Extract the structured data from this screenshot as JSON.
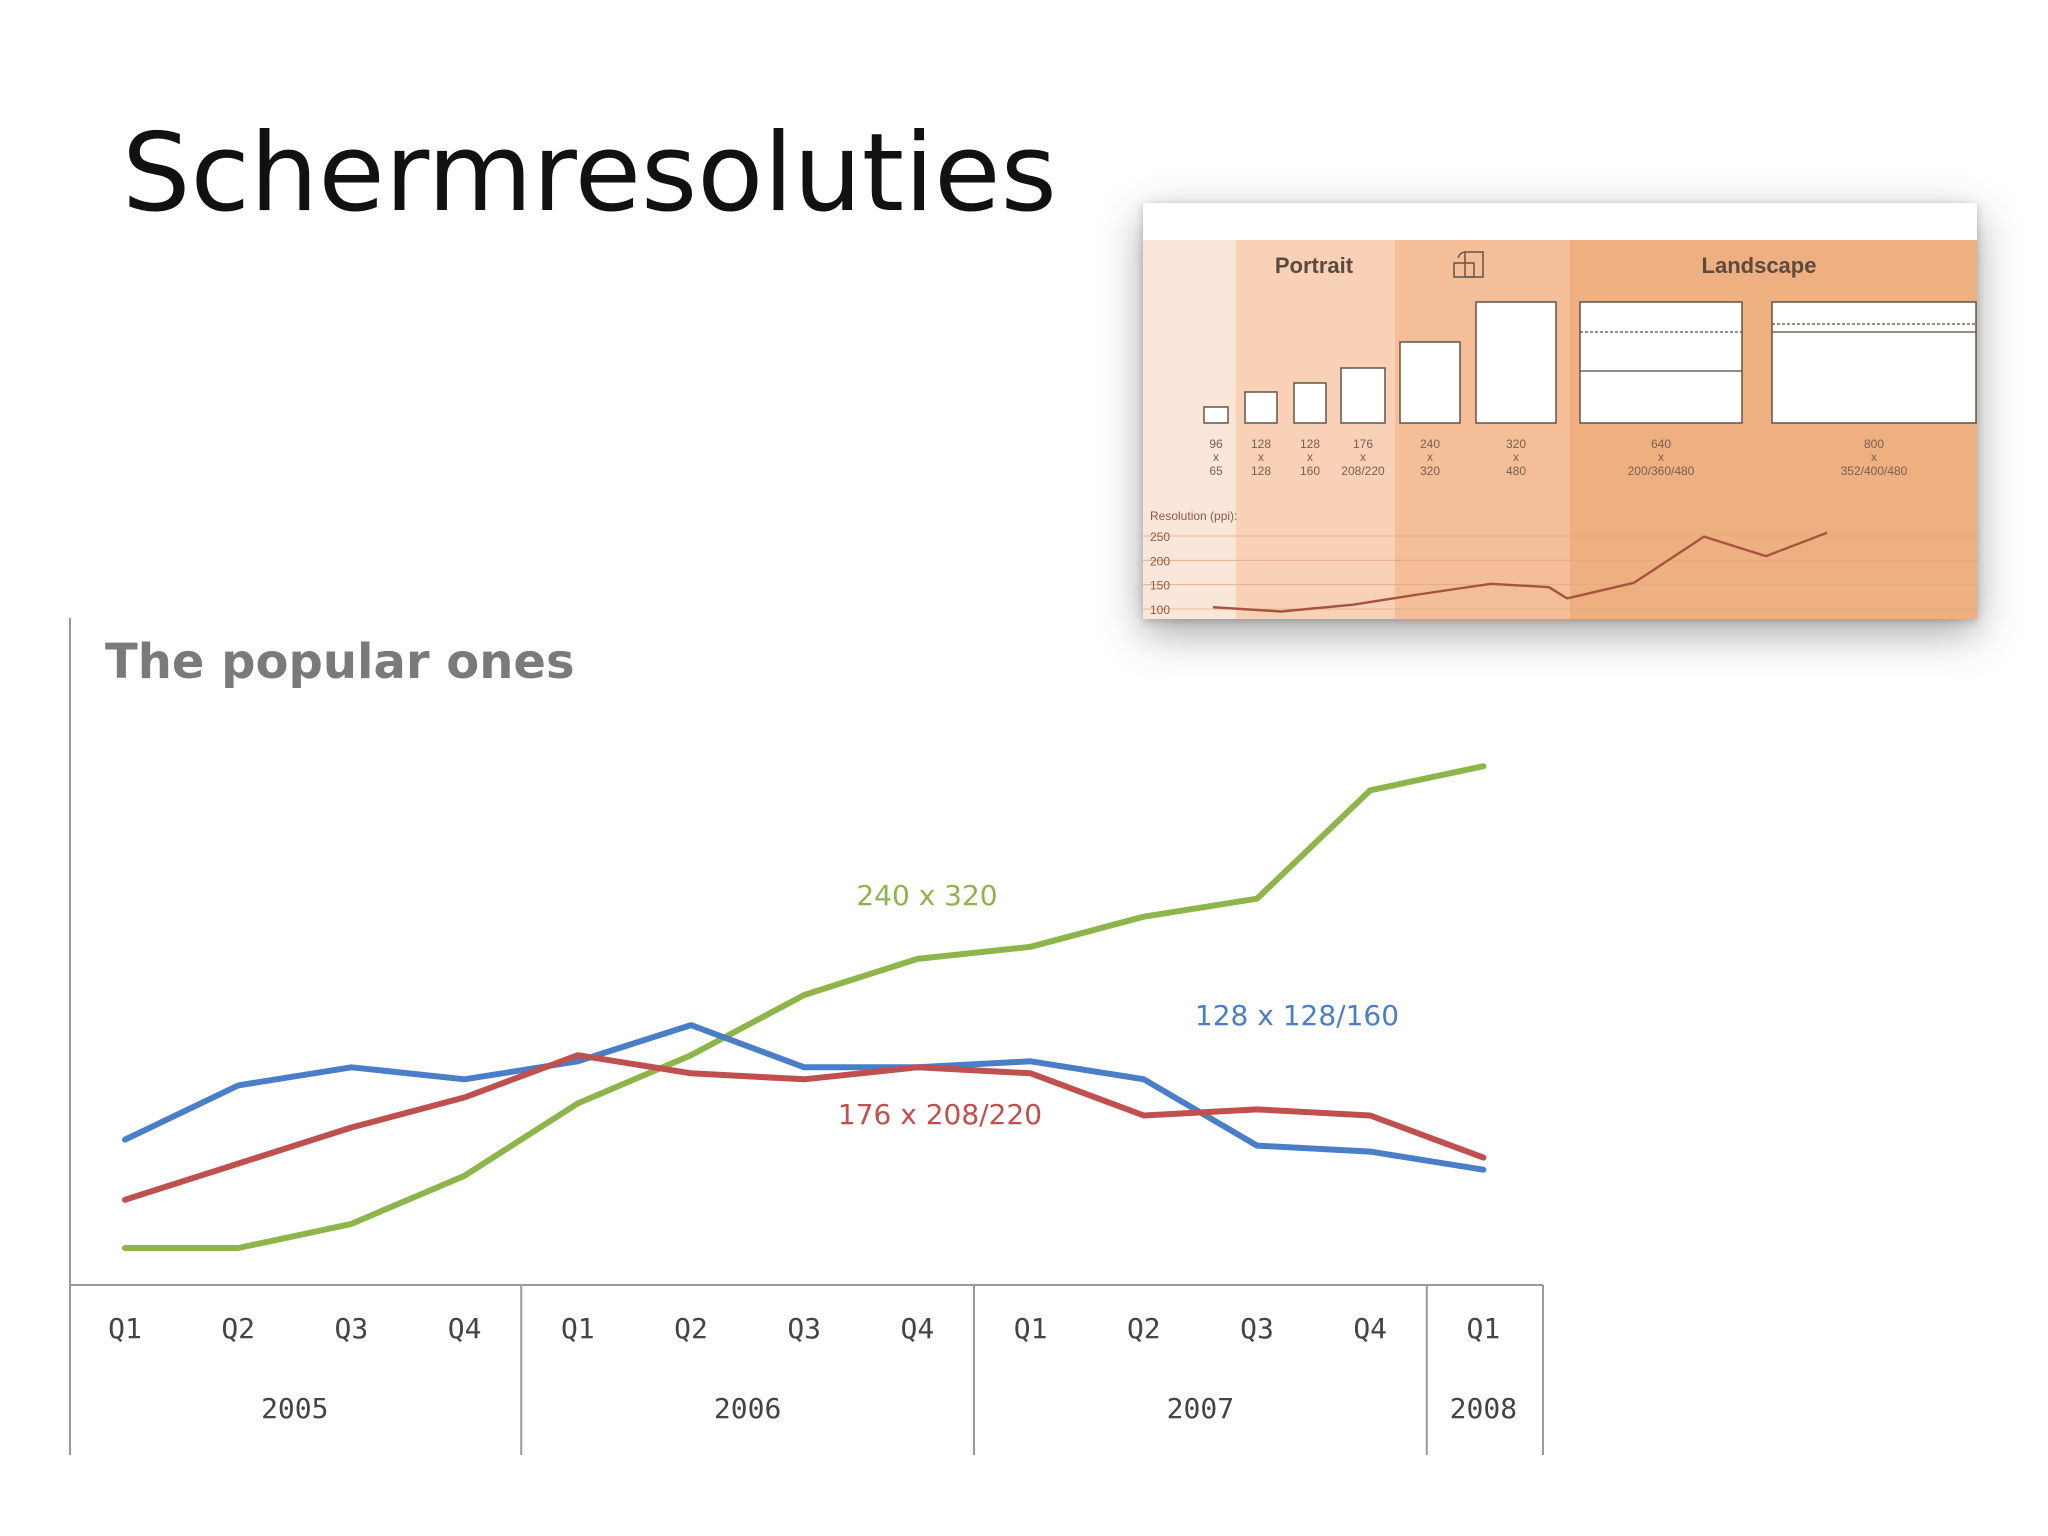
{
  "slide": {
    "title": "Schermresoluties"
  },
  "chart_data": [
    {
      "type": "line",
      "title": "The popular  ones",
      "quarters": [
        "Q1",
        "Q2",
        "Q3",
        "Q4",
        "Q1",
        "Q2",
        "Q3",
        "Q4",
        "Q1",
        "Q2",
        "Q3",
        "Q4",
        "Q1"
      ],
      "years": [
        {
          "label": "2005",
          "span": 4
        },
        {
          "label": "2006",
          "span": 4
        },
        {
          "label": "2007",
          "span": 4
        },
        {
          "label": "2008",
          "span": 1
        }
      ],
      "series": [
        {
          "name": "240 x 320",
          "color": "#8db54a",
          "values": [
            2,
            2,
            6,
            14,
            26,
            34,
            44,
            50,
            52,
            57,
            60,
            78,
            82
          ]
        },
        {
          "name": "128 x 128/160",
          "color": "#4a7ec8",
          "values": [
            20,
            29,
            32,
            30,
            33,
            39,
            32,
            32,
            33,
            30,
            19,
            18,
            15
          ]
        },
        {
          "name": "176 x 208/220",
          "color": "#c0504d",
          "values": [
            10,
            16,
            22,
            27,
            34,
            31,
            30,
            32,
            31,
            24,
            25,
            24,
            17
          ]
        }
      ],
      "ylim": [
        0,
        90
      ],
      "grid": false,
      "legend": "inline labels"
    },
    {
      "type": "line",
      "headers": {
        "portrait": "Portrait",
        "landscape": "Landscape"
      },
      "resolutions": [
        {
          "top": "96",
          "x": "x",
          "bottom": "65"
        },
        {
          "top": "128",
          "x": "x",
          "bottom": "128"
        },
        {
          "top": "128",
          "x": "x",
          "bottom": "160"
        },
        {
          "top": "176",
          "x": "x",
          "bottom": "208/220"
        },
        {
          "top": "240",
          "x": "x",
          "bottom": "320"
        },
        {
          "top": "320",
          "x": "x",
          "bottom": "480"
        },
        {
          "top": "640",
          "x": "x",
          "bottom": "200/360/480"
        },
        {
          "top": "800",
          "x": "x",
          "bottom": "352/400/480"
        }
      ],
      "ylabel": "Resolution (ppi):",
      "yticks": [
        "250",
        "200",
        "150",
        "100"
      ],
      "ylim": [
        100,
        250
      ],
      "ppi_values": [
        112,
        103,
        117,
        138,
        160,
        153,
        130,
        162,
        257,
        217,
        265
      ],
      "colors": {
        "column_light": "#fbe6da",
        "column_mid": "#f8d1b6",
        "column_dark": "#f3b58c",
        "column_deep": "#eeb080",
        "line": "#a6543e"
      },
      "orientation_icon": "rotate-device-icon"
    }
  ]
}
